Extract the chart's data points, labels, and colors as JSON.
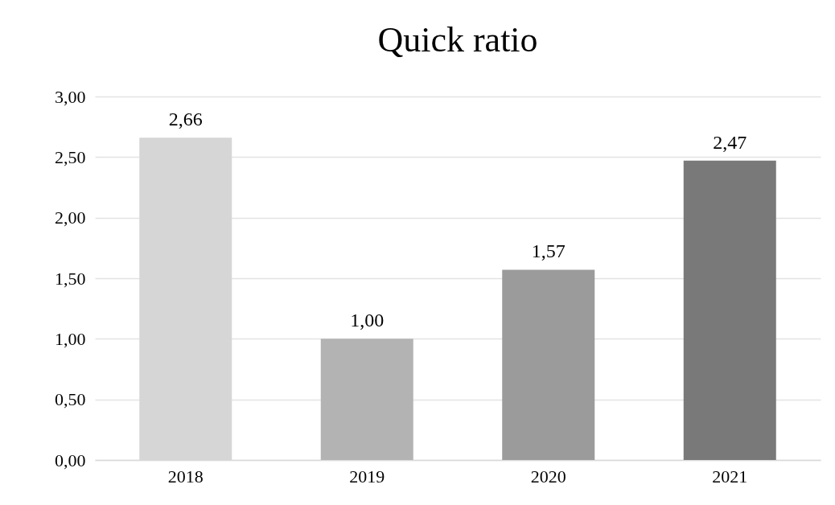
{
  "chart_data": {
    "type": "bar",
    "title": "Quick ratio",
    "categories": [
      "2018",
      "2019",
      "2020",
      "2021"
    ],
    "values": [
      2.66,
      1.0,
      1.57,
      2.47
    ],
    "value_labels": [
      "2,66",
      "1,00",
      "1,57",
      "2,47"
    ],
    "colors": [
      "#d6d6d6",
      "#b3b3b3",
      "#9b9b9b",
      "#797979"
    ],
    "ylim": [
      0,
      3
    ],
    "yticks": [
      {
        "value": 0,
        "label": "0,00"
      },
      {
        "value": 0.5,
        "label": "0,50"
      },
      {
        "value": 1,
        "label": "1,00"
      },
      {
        "value": 1.5,
        "label": "1,50"
      },
      {
        "value": 2,
        "label": "2,00"
      },
      {
        "value": 2.5,
        "label": "2,50"
      },
      {
        "value": 3,
        "label": "3,00"
      }
    ],
    "grid": true
  }
}
